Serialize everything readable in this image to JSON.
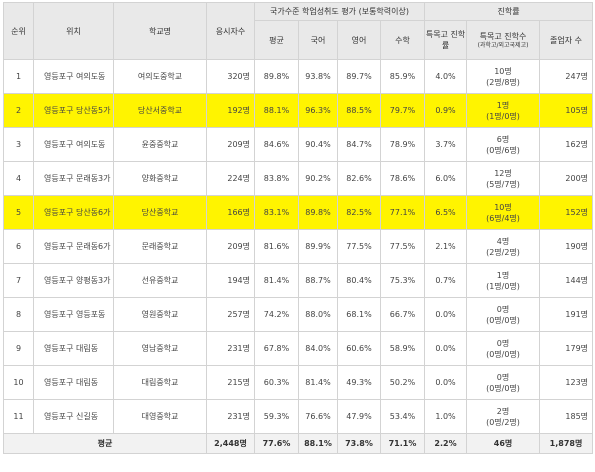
{
  "headers": {
    "rank": "순위",
    "location": "위치",
    "school": "학교명",
    "applicants": "응시자수",
    "achievement": "국가수준 학업성취도 평가 (보통학력이상)",
    "avg": "평균",
    "korean": "국어",
    "english": "영어",
    "math": "수학",
    "advancement": "진학률",
    "special_rate": "특목고 진학률",
    "special_count": "특목고 진학수",
    "special_count_note": "(과학고/외고국제고)",
    "graduates": "졸업자 수"
  },
  "rows": [
    {
      "rank": "1",
      "location": "영등포구 여의도동",
      "school": "여의도중학교",
      "applicants": "320명",
      "avg": "89.8%",
      "korean": "93.8%",
      "english": "89.7%",
      "math": "85.9%",
      "special_rate": "4.0%",
      "special_count": "10명",
      "special_detail": "(2명/8명)",
      "graduates": "247명",
      "highlight": false
    },
    {
      "rank": "2",
      "location": "영등포구 당산동5가",
      "school": "당산서중학교",
      "applicants": "192명",
      "avg": "88.1%",
      "korean": "96.3%",
      "english": "88.5%",
      "math": "79.7%",
      "special_rate": "0.9%",
      "special_count": "1명",
      "special_detail": "(1명/0명)",
      "graduates": "105명",
      "highlight": true
    },
    {
      "rank": "3",
      "location": "영등포구 여의도동",
      "school": "윤중중학교",
      "applicants": "209명",
      "avg": "84.6%",
      "korean": "90.4%",
      "english": "84.7%",
      "math": "78.9%",
      "special_rate": "3.7%",
      "special_count": "6명",
      "special_detail": "(0명/6명)",
      "graduates": "162명",
      "highlight": false
    },
    {
      "rank": "4",
      "location": "영등포구 문래동3가",
      "school": "양화중학교",
      "applicants": "224명",
      "avg": "83.8%",
      "korean": "90.2%",
      "english": "82.6%",
      "math": "78.6%",
      "special_rate": "6.0%",
      "special_count": "12명",
      "special_detail": "(5명/7명)",
      "graduates": "200명",
      "highlight": false
    },
    {
      "rank": "5",
      "location": "영등포구 당산동6가",
      "school": "당산중학교",
      "applicants": "166명",
      "avg": "83.1%",
      "korean": "89.8%",
      "english": "82.5%",
      "math": "77.1%",
      "special_rate": "6.5%",
      "special_count": "10명",
      "special_detail": "(6명/4명)",
      "graduates": "152명",
      "highlight": true
    },
    {
      "rank": "6",
      "location": "영등포구 문래동6가",
      "school": "문래중학교",
      "applicants": "209명",
      "avg": "81.6%",
      "korean": "89.9%",
      "english": "77.5%",
      "math": "77.5%",
      "special_rate": "2.1%",
      "special_count": "4명",
      "special_detail": "(2명/2명)",
      "graduates": "190명",
      "highlight": false
    },
    {
      "rank": "7",
      "location": "영등포구 양평동3가",
      "school": "선유중학교",
      "applicants": "194명",
      "avg": "81.4%",
      "korean": "88.7%",
      "english": "80.4%",
      "math": "75.3%",
      "special_rate": "0.7%",
      "special_count": "1명",
      "special_detail": "(1명/0명)",
      "graduates": "144명",
      "highlight": false
    },
    {
      "rank": "8",
      "location": "영등포구 영등포동",
      "school": "영원중학교",
      "applicants": "257명",
      "avg": "74.2%",
      "korean": "88.0%",
      "english": "68.1%",
      "math": "66.7%",
      "special_rate": "0.0%",
      "special_count": "0명",
      "special_detail": "(0명/0명)",
      "graduates": "191명",
      "highlight": false
    },
    {
      "rank": "9",
      "location": "영등포구 대림동",
      "school": "영남중학교",
      "applicants": "231명",
      "avg": "67.8%",
      "korean": "84.0%",
      "english": "60.6%",
      "math": "58.9%",
      "special_rate": "0.0%",
      "special_count": "0명",
      "special_detail": "(0명/0명)",
      "graduates": "179명",
      "highlight": false
    },
    {
      "rank": "10",
      "location": "영등포구 대림동",
      "school": "대림중학교",
      "applicants": "215명",
      "avg": "60.3%",
      "korean": "81.4%",
      "english": "49.3%",
      "math": "50.2%",
      "special_rate": "0.0%",
      "special_count": "0명",
      "special_detail": "(0명/0명)",
      "graduates": "123명",
      "highlight": false
    },
    {
      "rank": "11",
      "location": "영등포구 신길동",
      "school": "대영중학교",
      "applicants": "231명",
      "avg": "59.3%",
      "korean": "76.6%",
      "english": "47.9%",
      "math": "53.4%",
      "special_rate": "1.0%",
      "special_count": "2명",
      "special_detail": "(0명/2명)",
      "graduates": "185명",
      "highlight": false
    }
  ],
  "footer": {
    "label": "평균",
    "applicants": "2,448명",
    "avg": "77.6%",
    "korean": "88.1%",
    "english": "73.8%",
    "math": "71.1%",
    "special_rate": "2.2%",
    "special_count": "46명",
    "graduates": "1,878명"
  }
}
